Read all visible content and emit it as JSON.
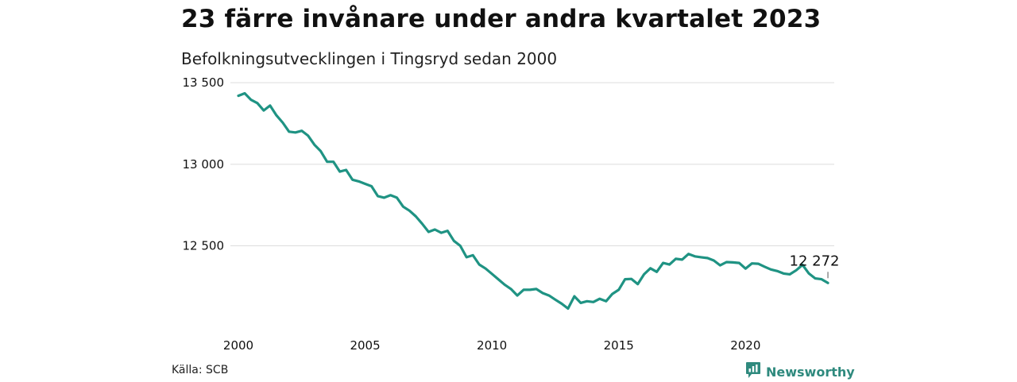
{
  "header": {
    "title": "23 färre invånare under andra kvartalet 2023",
    "subtitle": "Befolkningsutvecklingen i Tingsryd sedan 2000"
  },
  "footer": {
    "source": "Källa: SCB",
    "brand": "Newsworthy",
    "brand_icon": "bar-chart-logo-icon"
  },
  "colors": {
    "line": "#1f9383",
    "grid": "#dddddd",
    "brand": "#2f8a7e"
  },
  "chart_data": {
    "type": "line",
    "title": "23 färre invånare under andra kvartalet 2023",
    "subtitle": "Befolkningsutvecklingen i Tingsryd sedan 2000",
    "xlim": [
      2000,
      2023.5
    ],
    "ylim": [
      12030,
      13530
    ],
    "x_ticks": [
      2000,
      2005,
      2010,
      2015,
      2020
    ],
    "x_tick_labels": [
      "2000",
      "2005",
      "2010",
      "2015",
      "2020"
    ],
    "y_ticks": [
      12500,
      13000,
      13500
    ],
    "y_tick_labels": [
      "12 500",
      "13 000",
      "13 500"
    ],
    "grid": "horizontal",
    "annotation": {
      "label": "12 272",
      "x": 2023.25,
      "y": 12272
    },
    "series": [
      {
        "values": [
          [
            2000.0,
            13420
          ],
          [
            2000.25,
            13435
          ],
          [
            2000.5,
            13395
          ],
          [
            2000.75,
            13375
          ],
          [
            2001.0,
            13330
          ],
          [
            2001.25,
            13360
          ],
          [
            2001.5,
            13300
          ],
          [
            2001.75,
            13255
          ],
          [
            2002.0,
            13200
          ],
          [
            2002.25,
            13195
          ],
          [
            2002.5,
            13205
          ],
          [
            2002.75,
            13175
          ],
          [
            2003.0,
            13120
          ],
          [
            2003.25,
            13080
          ],
          [
            2003.5,
            13015
          ],
          [
            2003.75,
            13015
          ],
          [
            2004.0,
            12955
          ],
          [
            2004.25,
            12965
          ],
          [
            2004.5,
            12905
          ],
          [
            2004.75,
            12895
          ],
          [
            2005.0,
            12880
          ],
          [
            2005.25,
            12865
          ],
          [
            2005.5,
            12805
          ],
          [
            2005.75,
            12795
          ],
          [
            2006.0,
            12810
          ],
          [
            2006.25,
            12795
          ],
          [
            2006.5,
            12740
          ],
          [
            2006.75,
            12715
          ],
          [
            2007.0,
            12680
          ],
          [
            2007.25,
            12635
          ],
          [
            2007.5,
            12585
          ],
          [
            2007.75,
            12600
          ],
          [
            2008.0,
            12580
          ],
          [
            2008.25,
            12592
          ],
          [
            2008.5,
            12530
          ],
          [
            2008.75,
            12500
          ],
          [
            2009.0,
            12430
          ],
          [
            2009.25,
            12442
          ],
          [
            2009.5,
            12385
          ],
          [
            2009.75,
            12360
          ],
          [
            2010.0,
            12328
          ],
          [
            2010.25,
            12295
          ],
          [
            2010.5,
            12262
          ],
          [
            2010.75,
            12235
          ],
          [
            2011.0,
            12195
          ],
          [
            2011.25,
            12230
          ],
          [
            2011.5,
            12230
          ],
          [
            2011.75,
            12235
          ],
          [
            2012.0,
            12210
          ],
          [
            2012.25,
            12195
          ],
          [
            2012.5,
            12170
          ],
          [
            2012.75,
            12145
          ],
          [
            2013.0,
            12115
          ],
          [
            2013.25,
            12190
          ],
          [
            2013.5,
            12150
          ],
          [
            2013.75,
            12160
          ],
          [
            2014.0,
            12155
          ],
          [
            2014.25,
            12175
          ],
          [
            2014.5,
            12160
          ],
          [
            2014.75,
            12205
          ],
          [
            2015.0,
            12230
          ],
          [
            2015.25,
            12295
          ],
          [
            2015.5,
            12297
          ],
          [
            2015.75,
            12265
          ],
          [
            2016.0,
            12325
          ],
          [
            2016.25,
            12362
          ],
          [
            2016.5,
            12340
          ],
          [
            2016.75,
            12395
          ],
          [
            2017.0,
            12385
          ],
          [
            2017.25,
            12420
          ],
          [
            2017.5,
            12415
          ],
          [
            2017.75,
            12450
          ],
          [
            2018.0,
            12435
          ],
          [
            2018.25,
            12430
          ],
          [
            2018.5,
            12425
          ],
          [
            2018.75,
            12410
          ],
          [
            2019.0,
            12380
          ],
          [
            2019.25,
            12400
          ],
          [
            2019.5,
            12398
          ],
          [
            2019.75,
            12395
          ],
          [
            2020.0,
            12360
          ],
          [
            2020.25,
            12392
          ],
          [
            2020.5,
            12390
          ],
          [
            2020.75,
            12372
          ],
          [
            2021.0,
            12355
          ],
          [
            2021.25,
            12345
          ],
          [
            2021.5,
            12330
          ],
          [
            2021.75,
            12325
          ],
          [
            2022.0,
            12350
          ],
          [
            2022.25,
            12383
          ],
          [
            2022.5,
            12330
          ],
          [
            2022.75,
            12300
          ],
          [
            2023.0,
            12295
          ],
          [
            2023.25,
            12272
          ]
        ]
      }
    ]
  }
}
